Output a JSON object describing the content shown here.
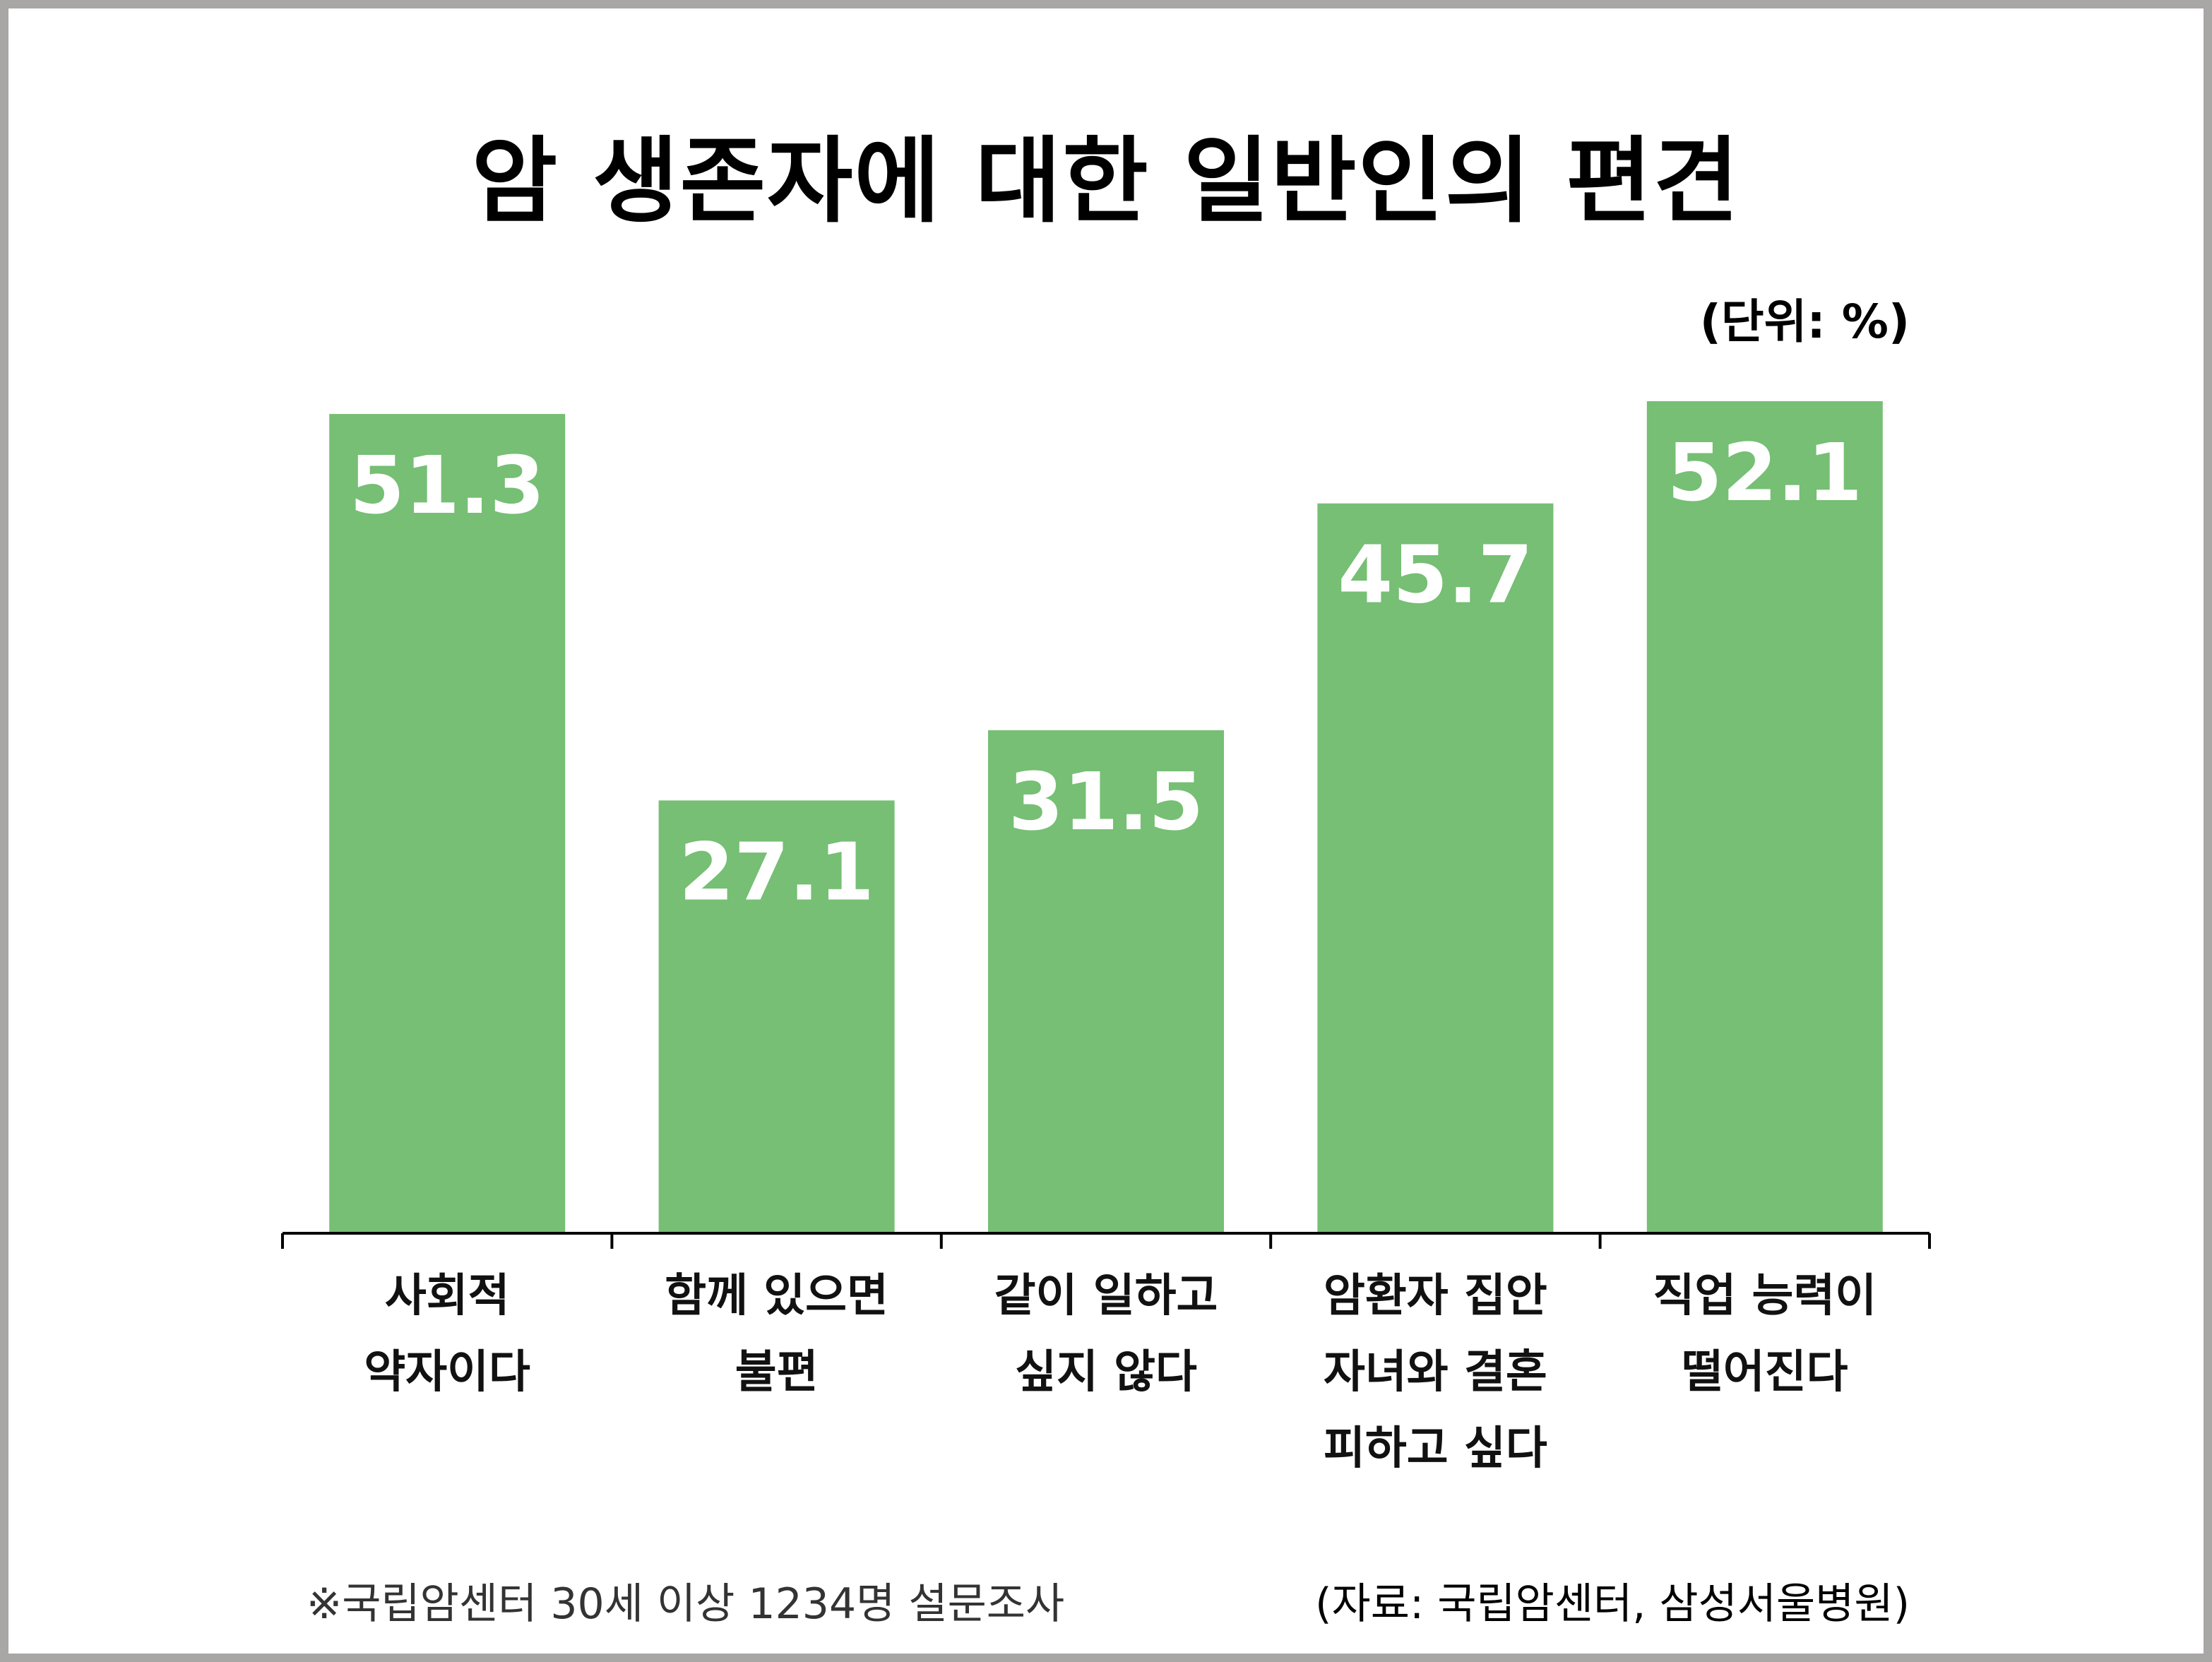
{
  "chart_data": {
    "type": "bar",
    "title": "암 생존자에 대한 일반인의 편견",
    "unit_label": "(단위: %)",
    "categories": [
      [
        "사회적",
        "약자이다"
      ],
      [
        "함께 있으면",
        "불편"
      ],
      [
        "같이 일하고",
        "싶지 않다"
      ],
      [
        "암환자 집안",
        "자녀와 결혼",
        "피하고 싶다"
      ],
      [
        "직업 능력이",
        "떨어진다"
      ]
    ],
    "values": [
      51.3,
      27.1,
      31.5,
      45.7,
      52.1
    ],
    "value_labels": [
      "51.3",
      "27.1",
      "31.5",
      "45.7",
      "52.1"
    ],
    "ylim": [
      0,
      52.1
    ],
    "grid": false,
    "bar_color": "#76bf74",
    "value_label_color": "#ffffff"
  },
  "footnote": "※국립암센터 30세 이상 1234명 설문조사",
  "source": "(자료: 국립암센터, 삼성서울병원)"
}
